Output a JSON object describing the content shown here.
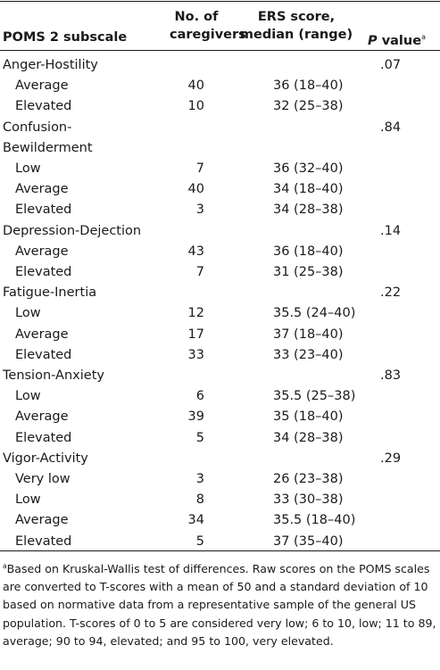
{
  "header": {
    "subscale": "POMS 2 subscale",
    "count_line1": "No. of",
    "count_line2": "caregivers",
    "ers_line1": "ERS score,",
    "ers_line2": "median (range)",
    "p_label": "P",
    "p_rest": " value",
    "p_mark": "a"
  },
  "groups": [
    {
      "name": "Anger-Hostility",
      "p": ".07",
      "rows": [
        {
          "level": "Average",
          "n": "40",
          "ers": "36 (18–40)"
        },
        {
          "level": "Elevated",
          "n": "10",
          "ers": "32 (25–38)"
        }
      ]
    },
    {
      "name_line1": "Confusion-",
      "name_line2": "Bewilderment",
      "p": ".84",
      "rows": [
        {
          "level": "Low",
          "n": "7",
          "ers": "36 (32–40)"
        },
        {
          "level": "Average",
          "n": "40",
          "ers": "34 (18–40)"
        },
        {
          "level": "Elevated",
          "n": "3",
          "ers": "34 (28–38)"
        }
      ]
    },
    {
      "name": "Depression-Dejection",
      "p": ".14",
      "rows": [
        {
          "level": "Average",
          "n": "43",
          "ers": "36 (18–40)"
        },
        {
          "level": "Elevated",
          "n": "7",
          "ers": "31 (25–38)"
        }
      ]
    },
    {
      "name": "Fatigue-Inertia",
      "p": ".22",
      "rows": [
        {
          "level": "Low",
          "n": "12",
          "ers": "35.5 (24–40)"
        },
        {
          "level": "Average",
          "n": "17",
          "ers": "37 (18–40)"
        },
        {
          "level": "Elevated",
          "n": "33",
          "ers": "33 (23–40)"
        }
      ]
    },
    {
      "name": "Tension-Anxiety",
      "p": ".83",
      "rows": [
        {
          "level": "Low",
          "n": "6",
          "ers": "35.5 (25–38)"
        },
        {
          "level": "Average",
          "n": "39",
          "ers": "35 (18–40)"
        },
        {
          "level": "Elevated",
          "n": "5",
          "ers": "34 (28–38)"
        }
      ]
    },
    {
      "name": "Vigor-Activity",
      "p": ".29",
      "rows": [
        {
          "level": "Very low",
          "n": "3",
          "ers": "26 (23–38)"
        },
        {
          "level": "Low",
          "n": "8",
          "ers": "33 (30–38)"
        },
        {
          "level": "Average",
          "n": "34",
          "ers": "35.5 (18–40)"
        },
        {
          "level": "Elevated",
          "n": "5",
          "ers": "37 (35–40)"
        }
      ]
    }
  ],
  "footnote": {
    "mark": "a",
    "text": "Based on Kruskal-Wallis test of differences. Raw scores on the POMS scales are converted to T-scores with a mean of 50 and a standard deviation of 10 based on normative data from a representative sample of the general US population. T-scores of 0 to 5 are considered very low; 6 to 10, low; 11 to 89, average; 90 to 94, elevated; and 95 to 100, very elevated."
  }
}
